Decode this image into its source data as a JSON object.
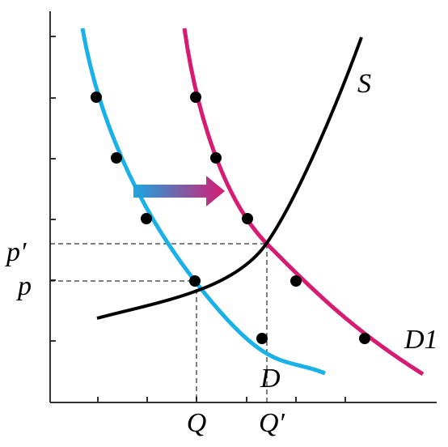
{
  "labels": {
    "p_prime": "p′",
    "p": "p",
    "q": "Q",
    "q_prime": "Q′",
    "supply": "S",
    "demand": "D",
    "demand_shifted": "D1"
  }
}
